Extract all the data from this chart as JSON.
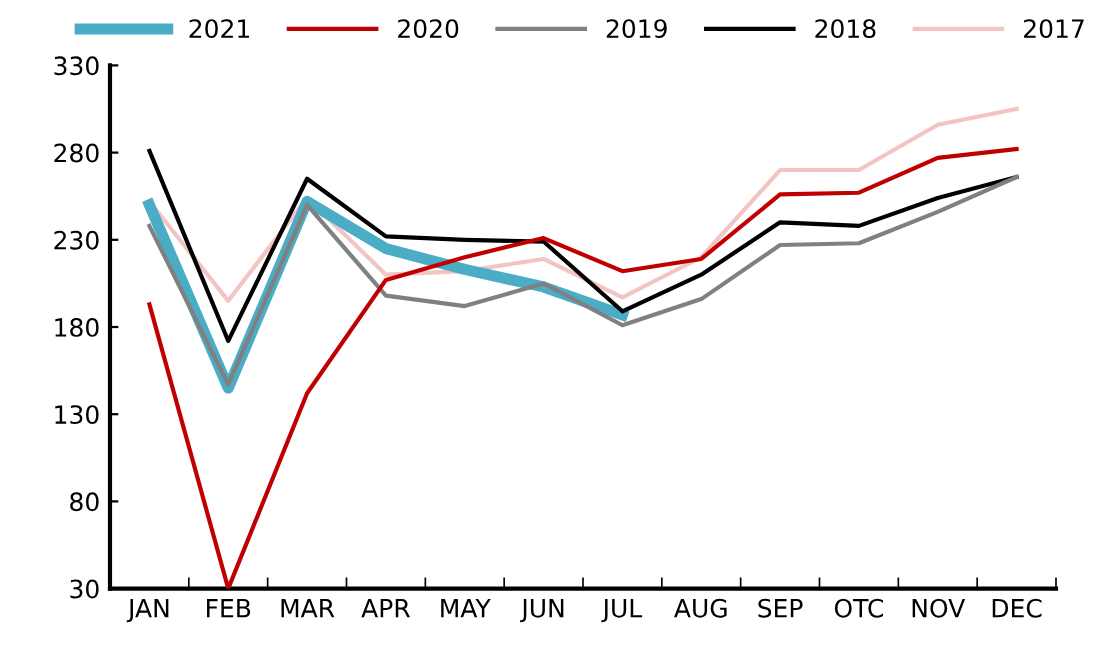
{
  "chart_data": {
    "type": "line",
    "categories": [
      "JAN",
      "FEB",
      "MAR",
      "APR",
      "MAY",
      "JUN",
      "JUL",
      "AUG",
      "SEP",
      "OTC",
      "NOV",
      "DEC"
    ],
    "series": [
      {
        "name": "2021",
        "color": "#4bacc6",
        "values": [
          250,
          145,
          252,
          225,
          213,
          203,
          187,
          null,
          null,
          null,
          null,
          null
        ]
      },
      {
        "name": "2020",
        "color": "#c00000",
        "values": [
          193,
          30,
          142,
          207,
          220,
          231,
          212,
          219,
          256,
          257,
          277,
          282
        ]
      },
      {
        "name": "2019",
        "color": "#808080",
        "values": [
          238,
          147,
          250,
          198,
          192,
          205,
          181,
          196,
          227,
          228,
          246,
          266
        ]
      },
      {
        "name": "2018",
        "color": "#000000",
        "values": [
          281,
          172,
          265,
          232,
          230,
          229,
          189,
          210,
          240,
          238,
          254,
          266
        ]
      },
      {
        "name": "2017",
        "color": "#f2c4c4",
        "values": [
          252,
          195,
          254,
          210,
          212,
          219,
          197,
          220,
          270,
          270,
          296,
          305
        ]
      }
    ],
    "ylim": [
      30,
      330
    ],
    "yticks": [
      30,
      80,
      130,
      180,
      230,
      280,
      330
    ],
    "grid": false,
    "legend": "top",
    "marker": "none",
    "line_style": "solid"
  }
}
